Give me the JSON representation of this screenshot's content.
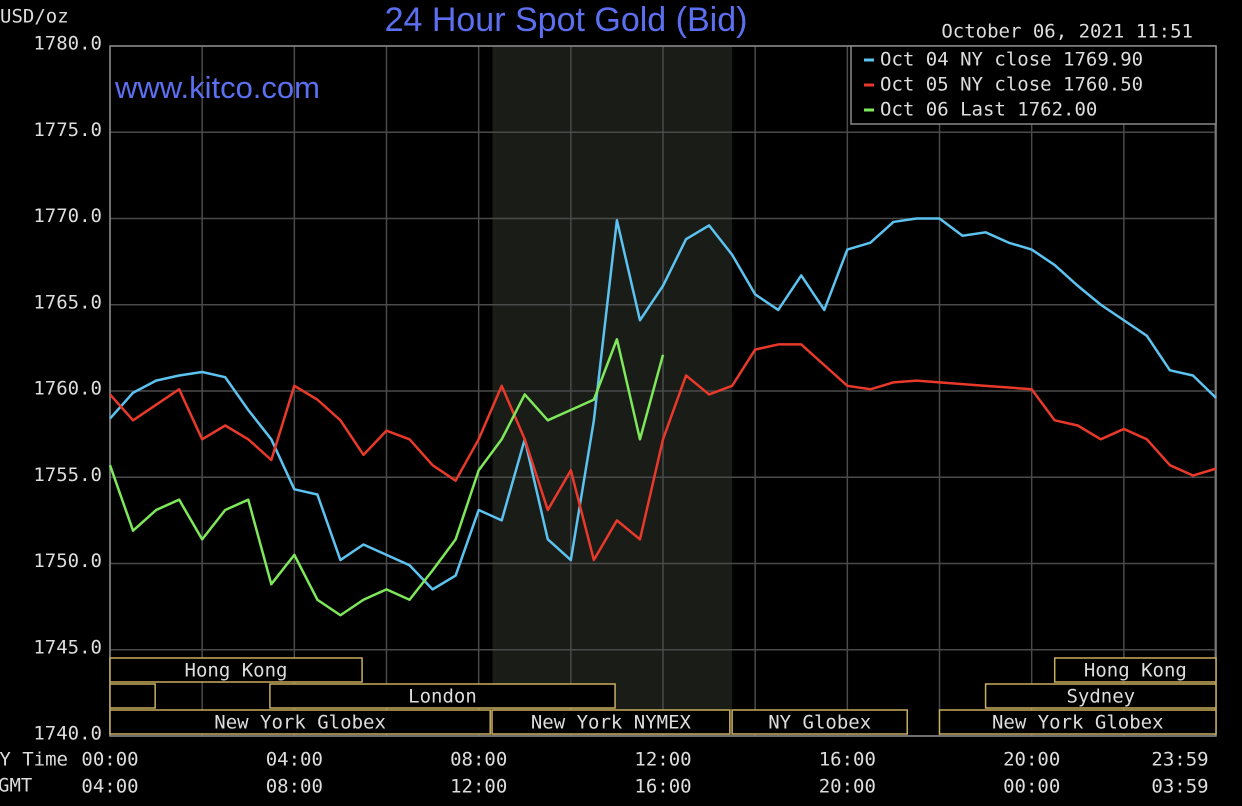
{
  "chart_data": {
    "type": "line",
    "title": "24 Hour Spot Gold (Bid)",
    "subtitle": "www.kitco.com",
    "timestamp": "October 06, 2021 11:51",
    "y_label": "USD/oz",
    "x_label": "NY Time",
    "x2_label": "GMT",
    "x": [
      0,
      0.5,
      1,
      1.5,
      2,
      2.5,
      3,
      3.5,
      4,
      4.5,
      5,
      5.5,
      6,
      6.5,
      7,
      7.5,
      8,
      8.5,
      9,
      9.5,
      10,
      10.5,
      11,
      11.5,
      12,
      12.5,
      13,
      13.5,
      14,
      14.5,
      15,
      15.5,
      16,
      16.5,
      17,
      17.5,
      18,
      18.5,
      19,
      19.5,
      20,
      20.5,
      21,
      21.5,
      22,
      22.5,
      23,
      23.5,
      24
    ],
    "series": [
      {
        "name": "Oct 04 NY close 1769.90",
        "color": "#5cc3f0",
        "values": [
          1758.4,
          1759.9,
          1760.6,
          1760.9,
          1761.1,
          1760.8,
          1758.9,
          1757.2,
          1754.3,
          1754.0,
          1750.2,
          1751.1,
          1750.5,
          1749.9,
          1748.5,
          1749.3,
          1753.1,
          1752.5,
          1757.2,
          1751.4,
          1750.2,
          1758.3,
          1769.9,
          1764.1,
          1766.1,
          1768.8,
          1769.6,
          1767.9,
          1765.6,
          1764.7,
          1766.7,
          1764.7,
          1768.2,
          1768.6,
          1769.8,
          1770.0,
          1770.0,
          1769.0,
          1769.2,
          1768.6,
          1768.2,
          1767.3,
          1766.1,
          1765.0,
          1764.1,
          1763.2,
          1761.2,
          1760.9,
          1759.6
        ]
      },
      {
        "name": "Oct 05 NY close 1760.50",
        "color": "#e8392a",
        "values": [
          1759.8,
          1758.3,
          1759.2,
          1760.1,
          1757.2,
          1758.0,
          1757.2,
          1756.0,
          1760.3,
          1759.5,
          1758.3,
          1756.3,
          1757.7,
          1757.2,
          1755.7,
          1754.8,
          1757.2,
          1760.3,
          1757.2,
          1753.1,
          1755.4,
          1750.2,
          1752.5,
          1751.4,
          1757.2,
          1760.9,
          1759.8,
          1760.3,
          1762.4,
          1762.7,
          1762.7,
          1761.5,
          1760.3,
          1760.1,
          1760.5,
          1760.6,
          1760.5,
          1760.4,
          1760.3,
          1760.2,
          1760.1,
          1758.3,
          1758.0,
          1757.2,
          1757.8,
          1757.2,
          1755.7,
          1755.1,
          1755.5
        ]
      },
      {
        "name": "Oct 06 Last 1762.00",
        "color": "#7ee85a",
        "values": [
          1755.7,
          1751.9,
          1753.1,
          1753.7,
          1751.4,
          1753.1,
          1753.7,
          1748.8,
          1750.5,
          1747.9,
          1747.0,
          1747.9,
          1748.5,
          1747.9,
          1749.6,
          1751.4,
          1755.4,
          1757.2,
          1759.8,
          1758.3,
          1758.9,
          1759.5,
          1763.0,
          1757.2,
          1762.1,
          null,
          null,
          null,
          null,
          null,
          null,
          null,
          null,
          null,
          null,
          null,
          null,
          null,
          null,
          null,
          null,
          null,
          null,
          null,
          null,
          null,
          null,
          null,
          null
        ]
      }
    ],
    "xlim": [
      0,
      24
    ],
    "xticks": [
      {
        "value": 0,
        "label": "00:00"
      },
      {
        "value": 4,
        "label": "04:00"
      },
      {
        "value": 8,
        "label": "08:00"
      },
      {
        "value": 12,
        "label": "12:00"
      },
      {
        "value": 16,
        "label": "16:00"
      },
      {
        "value": 20,
        "label": "20:00"
      },
      {
        "value": 23.98,
        "label": "23:59"
      }
    ],
    "x2ticks": [
      {
        "value": 0,
        "label": "04:00"
      },
      {
        "value": 4,
        "label": "08:00"
      },
      {
        "value": 8,
        "label": "12:00"
      },
      {
        "value": 12,
        "label": "16:00"
      },
      {
        "value": 16,
        "label": "20:00"
      },
      {
        "value": 20,
        "label": "00:00"
      },
      {
        "value": 23.98,
        "label": "03:59"
      }
    ],
    "x_minor_grid": [
      2,
      6,
      10,
      14,
      18,
      22
    ],
    "ylim": [
      1740,
      1780
    ],
    "yticks": [
      {
        "value": 1740,
        "label": "1740.0"
      },
      {
        "value": 1745,
        "label": "1745.0"
      },
      {
        "value": 1750,
        "label": "1750.0"
      },
      {
        "value": 1755,
        "label": "1755.0"
      },
      {
        "value": 1760,
        "label": "1760.0"
      },
      {
        "value": 1765,
        "label": "1765.0"
      },
      {
        "value": 1770,
        "label": "1770.0"
      },
      {
        "value": 1775,
        "label": "1775.0"
      },
      {
        "value": 1780,
        "label": "1780.0"
      }
    ],
    "grid": true,
    "legend": "top-right",
    "shaded_region": [
      8.3,
      13.5
    ],
    "sessions": [
      {
        "label": "Hong Kong",
        "row": 0,
        "start": 0,
        "end": 5.47
      },
      {
        "label": "Hong Kong",
        "row": 0,
        "start": 20.5,
        "end": 24
      },
      {
        "label": null,
        "row": 1,
        "start": 0,
        "end": 0.98
      },
      {
        "label": "London",
        "row": 1,
        "start": 3.47,
        "end": 10.96
      },
      {
        "label": "Sydney",
        "row": 1,
        "start": 19,
        "end": 24
      },
      {
        "label": "New York Globex",
        "row": 2,
        "start": 0,
        "end": 8.25
      },
      {
        "label": "New York NYMEX",
        "row": 2,
        "start": 8.29,
        "end": 13.45
      },
      {
        "label": "NY Globex",
        "row": 2,
        "start": 13.5,
        "end": 17.3
      },
      {
        "label": "New York Globex",
        "row": 2,
        "start": 18,
        "end": 24
      }
    ]
  }
}
